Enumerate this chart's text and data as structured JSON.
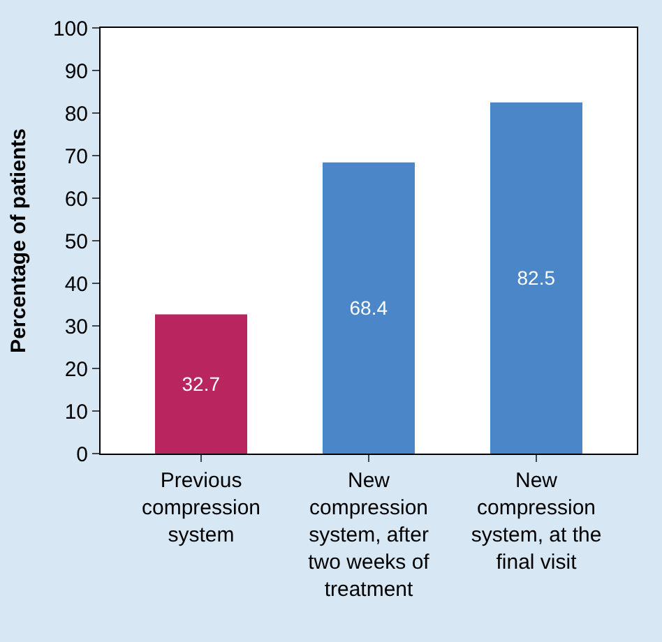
{
  "chart_data": {
    "type": "bar",
    "ylabel": "Percentage of patients",
    "categories": [
      "Previous compression system",
      "New compression system, after two weeks of treatment",
      "New compression system, at the final visit"
    ],
    "values": [
      32.7,
      68.4,
      82.5
    ],
    "colors": [
      "#b8255f",
      "#4a86c8",
      "#4a86c8"
    ],
    "ylim": [
      0,
      100
    ],
    "yticks": [
      0,
      10,
      20,
      30,
      40,
      50,
      60,
      70,
      80,
      90,
      100
    ],
    "data_labels": true
  }
}
